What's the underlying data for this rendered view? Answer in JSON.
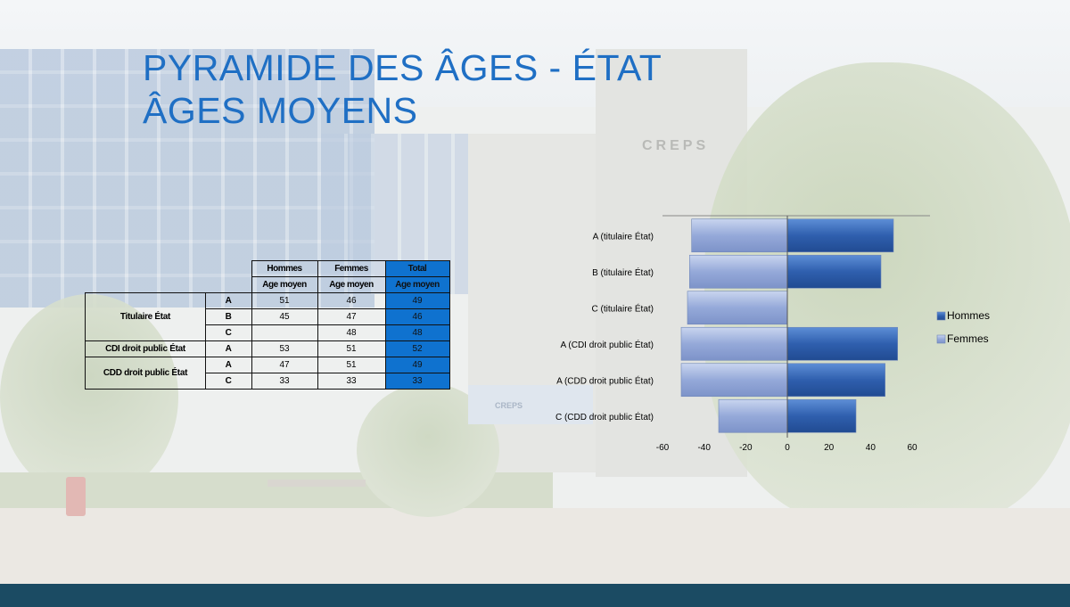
{
  "slide": {
    "title_line1": "PYRAMIDE DES ÂGES - ÉTAT",
    "title_line2": "ÂGES MOYENS",
    "colors": {
      "title": "#1f6fc4",
      "total_column": "#0f72cf",
      "footer": "#1b4b63"
    }
  },
  "table": {
    "col_headers": [
      "Hommes",
      "Femmes",
      "Total"
    ],
    "sub_header": "Age moyen",
    "rows": [
      {
        "category": "Titulaire État",
        "grade": "A",
        "hommes": "51",
        "femmes": "46",
        "total": "49"
      },
      {
        "category": "",
        "grade": "B",
        "hommes": "45",
        "femmes": "47",
        "total": "46"
      },
      {
        "category": "",
        "grade": "C",
        "hommes": "",
        "femmes": "48",
        "total": "48"
      },
      {
        "category": "CDI droit public État",
        "grade": "A",
        "hommes": "53",
        "femmes": "51",
        "total": "52"
      },
      {
        "category": "CDD droit public État",
        "grade": "A",
        "hommes": "47",
        "femmes": "51",
        "total": "49"
      },
      {
        "category": "",
        "grade": "C",
        "hommes": "33",
        "femmes": "33",
        "total": "33"
      }
    ]
  },
  "chart_data": {
    "type": "bar",
    "orientation": "horizontal",
    "stacking": "diverging",
    "categories": [
      "A (titulaire État)",
      "B (titulaire État)",
      "C (titulaire État)",
      "A (CDI droit public État)",
      "A (CDD droit public État)",
      "C (CDD droit public État)"
    ],
    "series": [
      {
        "name": "Hommes",
        "values": [
          51,
          45,
          0,
          53,
          47,
          33
        ],
        "color": "#2f5fae"
      },
      {
        "name": "Femmes",
        "values": [
          -46,
          -47,
          -48,
          -51,
          -51,
          -33
        ],
        "color": "#95a9d9"
      }
    ],
    "xlim": [
      -60,
      60
    ],
    "xticks": [
      "-60",
      "-40",
      "-20",
      "0",
      "20",
      "40",
      "60"
    ],
    "legend_position": "right",
    "grid": false
  }
}
